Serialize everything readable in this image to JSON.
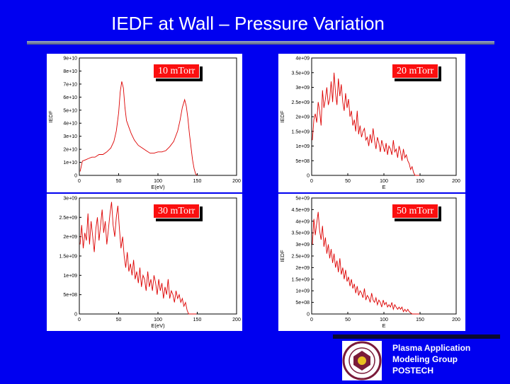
{
  "slide": {
    "title": "IEDF at Wall – Pressure Variation",
    "group_lines": [
      "Plasma Application",
      "Modeling Group",
      "POSTECH"
    ]
  },
  "colors": {
    "background": "#0000f0",
    "line": "#dd0000",
    "tag": "#fb0f0f"
  },
  "chart_data": [
    {
      "type": "line",
      "tag": "10 mTorr",
      "xlabel": "E(eV)",
      "ylabel": "IEDF",
      "xlim": [
        0,
        200
      ],
      "ylim": [
        0,
        90000000000.0
      ],
      "xticks": [
        "0",
        "50",
        "100",
        "150",
        "200"
      ],
      "yticks": [
        "0",
        "1e+10",
        "2e+10",
        "3e+10",
        "4e+10",
        "5e+10",
        "6e+10",
        "7e+10",
        "8e+10",
        "9e+10"
      ],
      "grid": false,
      "series": [
        {
          "x": [
            1,
            4,
            8,
            12,
            16,
            20,
            25,
            30,
            35,
            40,
            44,
            47,
            50,
            52,
            54,
            56,
            58,
            60,
            63,
            66,
            70,
            75,
            80,
            85,
            90,
            95,
            100,
            105,
            110,
            115,
            120,
            125,
            128,
            131,
            134,
            136,
            138,
            140,
            142,
            144,
            146,
            148,
            150
          ],
          "y": [
            3000000000.0,
            11000000000.0,
            12000000000.0,
            13000000000.0,
            14000000000.0,
            14000000000.0,
            16000000000.0,
            16000000000.0,
            18000000000.0,
            21000000000.0,
            26000000000.0,
            34000000000.0,
            48000000000.0,
            64000000000.0,
            72000000000.0,
            67000000000.0,
            52000000000.0,
            42000000000.0,
            37000000000.0,
            32000000000.0,
            27000000000.0,
            23000000000.0,
            21000000000.0,
            19000000000.0,
            17000000000.0,
            17000000000.0,
            18000000000.0,
            18000000000.0,
            19000000000.0,
            22000000000.0,
            26000000000.0,
            34000000000.0,
            42000000000.0,
            52000000000.0,
            58000000000.0,
            53000000000.0,
            44000000000.0,
            32000000000.0,
            22000000000.0,
            12000000000.0,
            5000000000.0,
            1000000000.0,
            0
          ]
        }
      ]
    },
    {
      "type": "line",
      "tag": "20 mTorr",
      "xlabel": "E",
      "ylabel": "IEDF",
      "xlim": [
        0,
        200
      ],
      "ylim": [
        0,
        4000000000.0
      ],
      "xticks": [
        "0",
        "50",
        "100",
        "150",
        "200"
      ],
      "yticks": [
        "0",
        "5e+08",
        "1e+09",
        "1.5e+09",
        "2e+09",
        "2.5e+09",
        "3e+09",
        "3.5e+09",
        "4e+09"
      ],
      "grid": false,
      "series": [
        {
          "x": [
            1,
            3,
            5,
            7,
            9,
            11,
            13,
            15,
            17,
            19,
            21,
            23,
            25,
            27,
            29,
            31,
            33,
            35,
            37,
            39,
            41,
            43,
            45,
            47,
            49,
            51,
            53,
            55,
            57,
            59,
            61,
            63,
            65,
            67,
            69,
            71,
            73,
            75,
            77,
            79,
            81,
            83,
            85,
            87,
            89,
            91,
            93,
            95,
            97,
            99,
            101,
            103,
            105,
            107,
            109,
            111,
            113,
            115,
            117,
            119,
            121,
            123,
            125,
            127,
            129,
            131,
            133,
            135,
            137,
            139,
            141,
            143,
            145,
            147,
            149
          ],
          "y": [
            1200000000.0,
            1900000000.0,
            2100000000.0,
            1800000000.0,
            2500000000.0,
            2200000000.0,
            1700000000.0,
            2900000000.0,
            2300000000.0,
            2600000000.0,
            3000000000.0,
            2400000000.0,
            2600000000.0,
            3200000000.0,
            2500000000.0,
            3500000000.0,
            2800000000.0,
            2400000000.0,
            3300000000.0,
            2700000000.0,
            3100000000.0,
            2500000000.0,
            2200000000.0,
            2800000000.0,
            2300000000.0,
            2600000000.0,
            2000000000.0,
            2200000000.0,
            1700000000.0,
            1900000000.0,
            1500000000.0,
            2200000000.0,
            1400000000.0,
            1700000000.0,
            1300000000.0,
            1500000000.0,
            1600000000.0,
            1200000000.0,
            1300000000.0,
            1000000000.0,
            1400000000.0,
            1100000000.0,
            1600000000.0,
            1200000000.0,
            900000000.0,
            1300000000.0,
            1100000000.0,
            800000000.0,
            1200000000.0,
            1000000000.0,
            800000000.0,
            1100000000.0,
            700000000.0,
            1000000000.0,
            900000000.0,
            700000000.0,
            1200000000.0,
            800000000.0,
            900000000.0,
            600000000.0,
            1000000000.0,
            800000000.0,
            500000000.0,
            900000000.0,
            600000000.0,
            700000000.0,
            500000000.0,
            400000000.0,
            200000000.0,
            300000000.0,
            100000000.0,
            0,
            0,
            0,
            0
          ]
        }
      ]
    },
    {
      "type": "line",
      "tag": "30 mTorr",
      "xlabel": "E(eV)",
      "ylabel": "",
      "xlim": [
        0,
        200
      ],
      "ylim": [
        0,
        3000000000.0
      ],
      "xticks": [
        "0",
        "50",
        "100",
        "150",
        "200"
      ],
      "yticks": [
        "0",
        "5e+08",
        "1e+09",
        "1.5e+09",
        "2e+09",
        "2.5e+09",
        "3e+09"
      ],
      "grid": false,
      "series": [
        {
          "x": [
            1,
            3,
            5,
            7,
            9,
            11,
            13,
            15,
            17,
            19,
            21,
            23,
            25,
            27,
            29,
            31,
            33,
            35,
            37,
            39,
            41,
            43,
            45,
            47,
            49,
            51,
            53,
            55,
            57,
            59,
            61,
            63,
            65,
            67,
            69,
            71,
            73,
            75,
            77,
            79,
            81,
            83,
            85,
            87,
            89,
            91,
            93,
            95,
            97,
            99,
            101,
            103,
            105,
            107,
            109,
            111,
            113,
            115,
            117,
            119,
            121,
            123,
            125,
            127,
            129,
            131,
            133,
            135,
            137,
            139,
            141,
            143,
            145,
            147,
            149
          ],
          "y": [
            1800000000.0,
            2300000000.0,
            1700000000.0,
            2100000000.0,
            1900000000.0,
            2600000000.0,
            1800000000.0,
            2400000000.0,
            2000000000.0,
            1600000000.0,
            2200000000.0,
            2500000000.0,
            1900000000.0,
            2300000000.0,
            2700000000.0,
            2100000000.0,
            2400000000.0,
            1800000000.0,
            2200000000.0,
            2600000000.0,
            2900000000.0,
            2300000000.0,
            2000000000.0,
            2500000000.0,
            2800000000.0,
            2200000000.0,
            1700000000.0,
            2000000000.0,
            1500000000.0,
            1200000000.0,
            1600000000.0,
            1100000000.0,
            1300000000.0,
            1000000000.0,
            1400000000.0,
            900000000.0,
            1100000000.0,
            800000000.0,
            1200000000.0,
            700000000.0,
            1000000000.0,
            900000000.0,
            600000000.0,
            1100000000.0,
            700000000.0,
            900000000.0,
            600000000.0,
            1000000000.0,
            800000000.0,
            500000000.0,
            900000000.0,
            600000000.0,
            800000000.0,
            400000000.0,
            700000000.0,
            500000000.0,
            900000000.0,
            400000000.0,
            600000000.0,
            500000000.0,
            300000000.0,
            600000000.0,
            400000000.0,
            500000000.0,
            300000000.0,
            400000000.0,
            200000000.0,
            300000000.0,
            100000000.0,
            0,
            0,
            0,
            0,
            0,
            0
          ]
        }
      ]
    },
    {
      "type": "line",
      "tag": "50 mTorr",
      "xlabel": "E",
      "ylabel": "IEDF",
      "xlim": [
        0,
        200
      ],
      "ylim": [
        0,
        5000000000.0
      ],
      "xticks": [
        "0",
        "50",
        "100",
        "150",
        "200"
      ],
      "yticks": [
        "0",
        "5e+08",
        "1e+09",
        "1.5e+09",
        "2e+09",
        "2.5e+09",
        "3e+09",
        "3.5e+09",
        "4e+09",
        "4.5e+09",
        "5e+09"
      ],
      "grid": false,
      "series": [
        {
          "x": [
            1,
            3,
            5,
            7,
            9,
            11,
            13,
            15,
            17,
            19,
            21,
            23,
            25,
            27,
            29,
            31,
            33,
            35,
            37,
            39,
            41,
            43,
            45,
            47,
            49,
            51,
            53,
            55,
            57,
            59,
            61,
            63,
            65,
            67,
            69,
            71,
            73,
            75,
            77,
            79,
            81,
            83,
            85,
            87,
            89,
            91,
            93,
            95,
            97,
            99,
            101,
            103,
            105,
            107,
            109,
            111,
            113,
            115,
            117,
            119,
            121,
            123,
            125,
            127,
            129,
            131,
            133,
            135,
            137,
            139,
            141,
            143,
            145,
            147,
            149
          ],
          "y": [
            3000000000.0,
            4100000000.0,
            3400000000.0,
            3900000000.0,
            4400000000.0,
            3600000000.0,
            3200000000.0,
            3800000000.0,
            2900000000.0,
            3300000000.0,
            2600000000.0,
            3000000000.0,
            2400000000.0,
            2800000000.0,
            2200000000.0,
            2600000000.0,
            2000000000.0,
            2300000000.0,
            1800000000.0,
            2400000000.0,
            1700000000.0,
            2000000000.0,
            1500000000.0,
            1900000000.0,
            1400000000.0,
            1600000000.0,
            1200000000.0,
            1500000000.0,
            1100000000.0,
            1300000000.0,
            900000000.0,
            1200000000.0,
            800000000.0,
            1000000000.0,
            900000000.0,
            700000000.0,
            1100000000.0,
            600000000.0,
            800000000.0,
            700000000.0,
            500000000.0,
            900000000.0,
            600000000.0,
            500000000.0,
            700000000.0,
            400000000.0,
            600000000.0,
            500000000.0,
            300000000.0,
            600000000.0,
            400000000.0,
            500000000.0,
            300000000.0,
            400000000.0,
            300000000.0,
            500000000.0,
            200000000.0,
            400000000.0,
            300000000.0,
            200000000.0,
            300000000.0,
            200000000.0,
            300000000.0,
            100000000.0,
            200000000.0,
            100000000.0,
            200000000.0,
            100000000.0,
            50000000.0,
            0,
            0,
            0,
            0,
            0,
            0
          ]
        }
      ]
    }
  ]
}
